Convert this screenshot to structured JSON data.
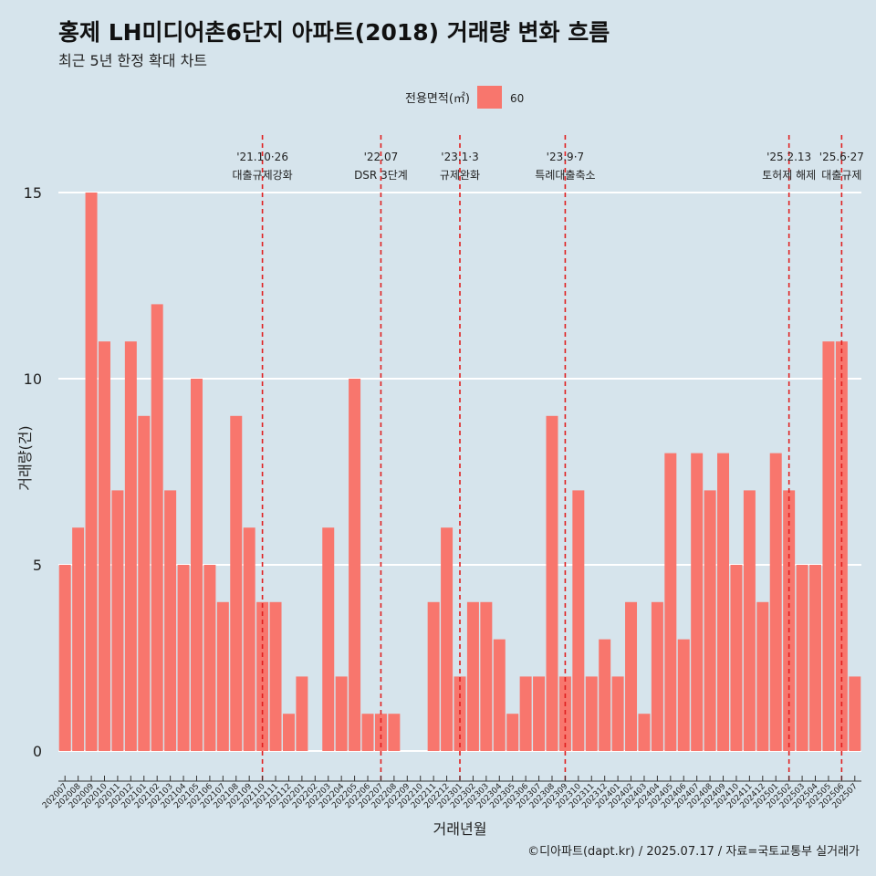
{
  "title": "홍제 LH미디어촌6단지 아파트(2018) 거래량 변화 흐름",
  "subtitle": "최근 5년 한정 확대 차트",
  "caption": "©디아파트(dapt.kr) / 2025.07.17 / 자료=국토교통부 실거래가",
  "chart_data": {
    "type": "bar",
    "xlabel": "거래년월",
    "ylabel": "거래량(건)",
    "ylim": [
      0,
      15
    ],
    "yticks": [
      0,
      5,
      10,
      15
    ],
    "legend": {
      "title": "전용면적(㎡)",
      "position": "top",
      "entries": [
        {
          "label": "60",
          "color": "#f8766d"
        }
      ]
    },
    "bar_color": "#f8766d",
    "grid": true,
    "categories": [
      "202007",
      "202008",
      "202009",
      "202010",
      "202011",
      "202012",
      "202101",
      "202102",
      "202103",
      "202104",
      "202105",
      "202106",
      "202107",
      "202108",
      "202109",
      "202110",
      "202111",
      "202112",
      "202201",
      "202202",
      "202203",
      "202204",
      "202205",
      "202206",
      "202207",
      "202208",
      "202209",
      "202210",
      "202211",
      "202212",
      "202301",
      "202302",
      "202303",
      "202304",
      "202305",
      "202306",
      "202307",
      "202308",
      "202309",
      "202310",
      "202311",
      "202312",
      "202401",
      "202402",
      "202403",
      "202404",
      "202405",
      "202406",
      "202407",
      "202408",
      "202409",
      "202410",
      "202411",
      "202412",
      "202501",
      "202502",
      "202503",
      "202504",
      "202505",
      "202506",
      "202507"
    ],
    "values": [
      5,
      6,
      15,
      11,
      7,
      11,
      9,
      12,
      7,
      5,
      10,
      5,
      4,
      9,
      6,
      4,
      4,
      1,
      2,
      0,
      6,
      2,
      10,
      1,
      1,
      1,
      0,
      0,
      4,
      6,
      2,
      4,
      4,
      3,
      1,
      2,
      2,
      9,
      2,
      7,
      2,
      3,
      2,
      4,
      1,
      4,
      8,
      3,
      8,
      7,
      8,
      5,
      7,
      4,
      8,
      7,
      5,
      5,
      11,
      11,
      2
    ],
    "annotations": [
      {
        "x": "202110",
        "date": "'21.10·26",
        "label": "대출규제강화"
      },
      {
        "x": "202207",
        "date": "'22.07",
        "label": "DSR 3단계"
      },
      {
        "x": "202301",
        "date": "'23.1·3",
        "label": "규제완화"
      },
      {
        "x": "202309",
        "date": "'23.9·7",
        "label": "특례대출축소"
      },
      {
        "x": "202502",
        "date": "'25.2.13",
        "label": "토허제 해제"
      },
      {
        "x": "202506",
        "date": "'25.6·27",
        "label": "대출규제"
      }
    ]
  }
}
